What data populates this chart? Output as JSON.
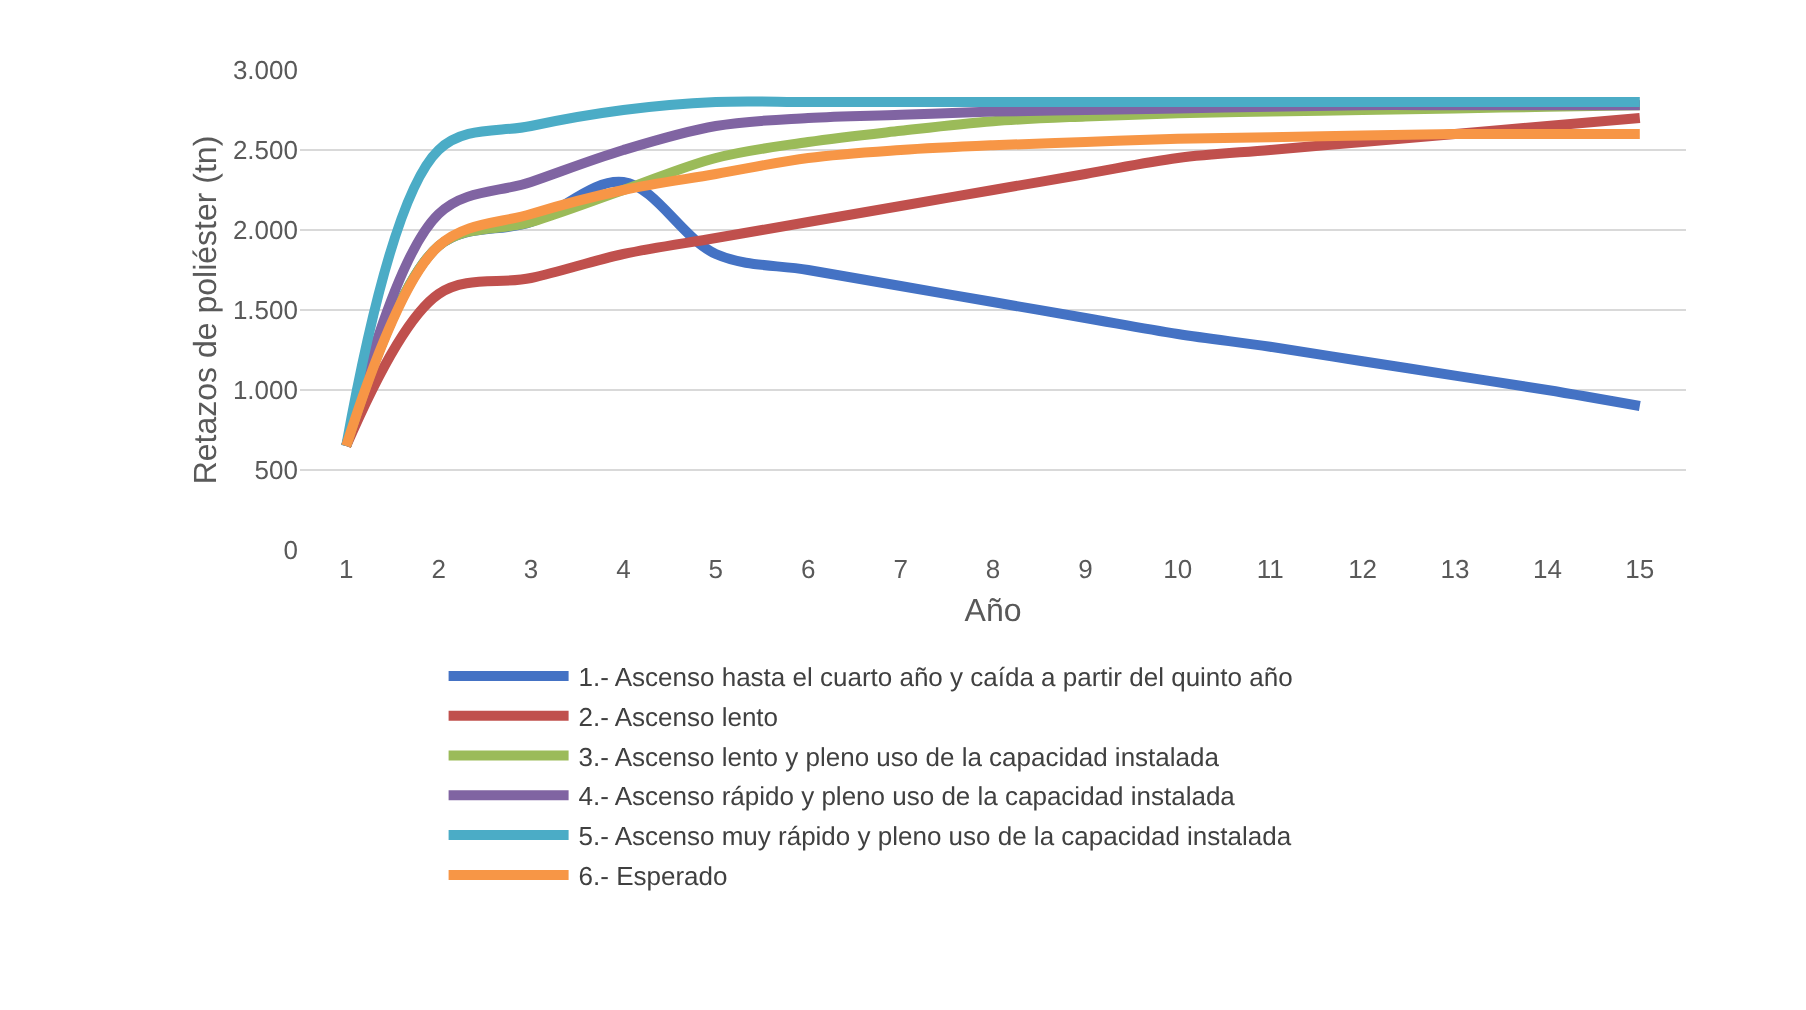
{
  "chart_data": {
    "type": "line",
    "xlabel": "Año",
    "ylabel": "Retazos de poliéster (tn)",
    "x": [
      1,
      2,
      3,
      4,
      5,
      6,
      7,
      8,
      9,
      10,
      11,
      12,
      13,
      14,
      15
    ],
    "xlim": [
      0.5,
      15.5
    ],
    "xticks": [
      1,
      2,
      3,
      4,
      5,
      6,
      7,
      8,
      9,
      10,
      11,
      12,
      13,
      14,
      15
    ],
    "ylim": [
      0,
      3000
    ],
    "yticks": [
      {
        "value": 0,
        "label": "0"
      },
      {
        "value": 500,
        "label": "500"
      },
      {
        "value": 1000,
        "label": "1.000"
      },
      {
        "value": 1500,
        "label": "1.500"
      },
      {
        "value": 2000,
        "label": "2.000"
      },
      {
        "value": 2500,
        "label": "2.500"
      },
      {
        "value": 3000,
        "label": "3.000"
      }
    ],
    "grid": "y",
    "legend": "bottom",
    "marker": "none",
    "line_style": "solid",
    "series": [
      {
        "name": "1.- Ascenso hasta el cuarto año y caída a partir del quinto año",
        "color": "#4472c4",
        "values": [
          650,
          1900,
          2050,
          2300,
          1850,
          1750,
          1650,
          1550,
          1450,
          1350,
          1270,
          1180,
          1090,
          1000,
          900
        ]
      },
      {
        "name": "2.- Ascenso lento",
        "color": "#c0504d",
        "values": [
          650,
          1600,
          1700,
          1850,
          1950,
          2050,
          2150,
          2250,
          2350,
          2450,
          2500,
          2550,
          2600,
          2650,
          2700
        ]
      },
      {
        "name": "3.- Ascenso lento y pleno uso de la capacidad instalada",
        "color": "#9bbb59",
        "values": [
          650,
          1900,
          2050,
          2250,
          2450,
          2550,
          2620,
          2680,
          2710,
          2730,
          2740,
          2750,
          2760,
          2770,
          2780
        ]
      },
      {
        "name": "4.- Ascenso rápido y pleno uso de la capacidad instalada",
        "color": "#8064a2",
        "values": [
          650,
          2100,
          2300,
          2500,
          2650,
          2700,
          2720,
          2740,
          2750,
          2760,
          2770,
          2780,
          2780,
          2780,
          2780
        ]
      },
      {
        "name": "5.- Ascenso muy rápido y pleno uso de la capacidad instalada",
        "color": "#4bacc6",
        "values": [
          650,
          2500,
          2650,
          2750,
          2800,
          2800,
          2800,
          2800,
          2800,
          2800,
          2800,
          2800,
          2800,
          2800,
          2800
        ]
      },
      {
        "name": "6.- Esperado",
        "color": "#f79646",
        "values": [
          650,
          1900,
          2100,
          2250,
          2350,
          2450,
          2500,
          2530,
          2550,
          2570,
          2580,
          2590,
          2600,
          2600,
          2600
        ]
      }
    ]
  }
}
